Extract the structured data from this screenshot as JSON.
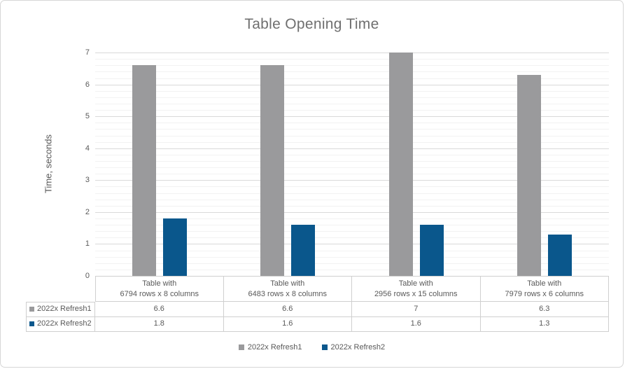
{
  "frame": {
    "background": "#ffffff",
    "border_color": "#d6d6d6"
  },
  "chart_data": {
    "type": "bar",
    "title": "Table Opening Time",
    "xlabel": "",
    "ylabel": "Time, seconds",
    "ylim": [
      0,
      7
    ],
    "y_major_step": 1,
    "y_minor_step": 0.2,
    "y_ticks": [
      "0",
      "1",
      "2",
      "3",
      "4",
      "5",
      "6",
      "7"
    ],
    "grid": true,
    "legend_position": "bottom",
    "data_table_shown": true,
    "categories": [
      "Table with 6794 rows x 8 columns",
      "Table with 6483 rows x 8 columns",
      "Table with 2956 rows x 15 columns",
      "Table with 7979 rows x 6 columns"
    ],
    "category_lines": [
      [
        "Table with",
        "6794 rows x 8 columns"
      ],
      [
        "Table with",
        "6483 rows x 8 columns"
      ],
      [
        "Table with",
        "2956 rows x 15 columns"
      ],
      [
        "Table with",
        "7979 rows x 6 columns"
      ]
    ],
    "series": [
      {
        "name": "2022x Refresh1",
        "color": "#9a9a9c",
        "values": [
          6.6,
          6.6,
          7,
          6.3
        ],
        "display_values": [
          "6.6",
          "6.6",
          "7",
          "6.3"
        ]
      },
      {
        "name": "2022x Refresh2",
        "color": "#0a578c",
        "values": [
          1.8,
          1.6,
          1.6,
          1.3
        ],
        "display_values": [
          "1.8",
          "1.6",
          "1.6",
          "1.3"
        ]
      }
    ]
  },
  "colors": {
    "title_text": "#6f6f6f",
    "axis_text": "#595959",
    "table_text": "#595959",
    "major_gridline": "#d9d9d9",
    "minor_gridline": "#f2f2f2",
    "table_border": "#cfcfcf"
  }
}
